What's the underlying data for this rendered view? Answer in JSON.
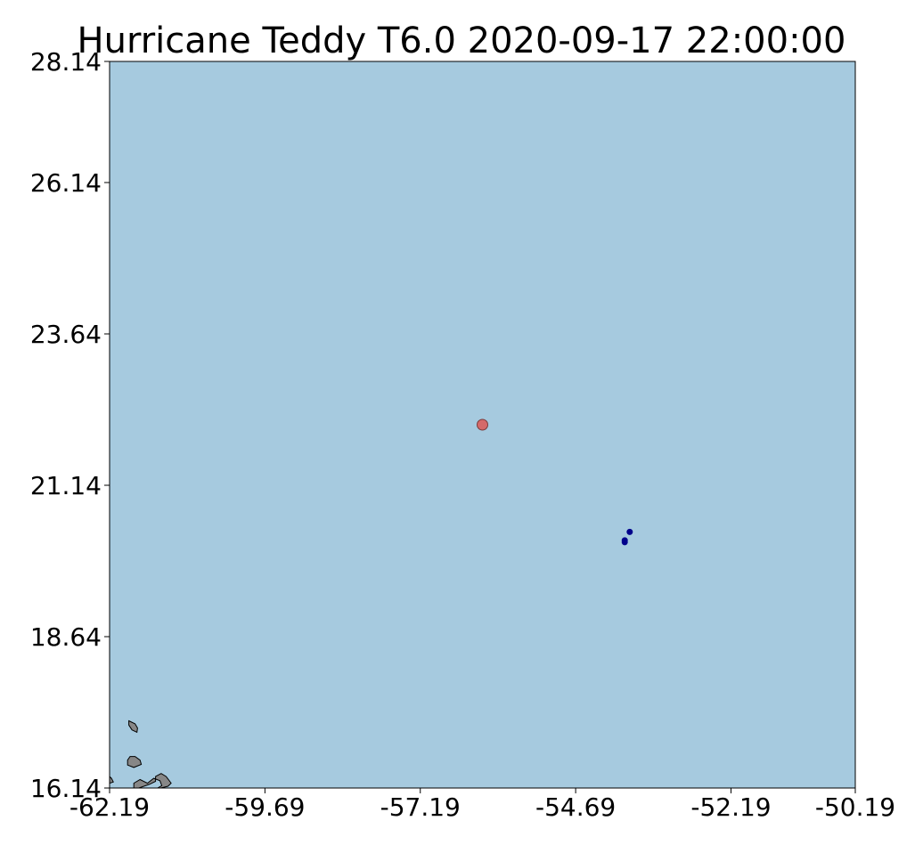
{
  "title": "Hurricane Teddy T6.0 2020-09-17 22:00:00",
  "map": {
    "extent": {
      "lon_min": -62.19,
      "lon_max": -50.19,
      "lat_min": 16.14,
      "lat_max": 28.14
    },
    "x_ticks": [
      "-62.19",
      "-59.69",
      "-57.19",
      "-54.69",
      "-52.19",
      "-50.19"
    ],
    "x_tick_values": [
      -62.19,
      -59.69,
      -57.19,
      -54.69,
      -52.19,
      -50.19
    ],
    "y_ticks": [
      "16.14",
      "18.64",
      "21.14",
      "23.64",
      "26.14",
      "28.14"
    ],
    "y_tick_values": [
      16.14,
      18.64,
      21.14,
      23.64,
      26.14,
      28.14
    ],
    "ocean_color": "#a6cadf",
    "land_color": "#878787",
    "hurricane_center": {
      "lon": -56.19,
      "lat": 22.14,
      "color": "#d46a6a"
    },
    "observations": {
      "color": "#00008b",
      "points": [
        {
          "lon": -53.82,
          "lat": 20.37
        },
        {
          "lon": -53.9,
          "lat": 20.23
        },
        {
          "lon": -53.9,
          "lat": 20.2
        }
      ]
    },
    "islands": [
      {
        "name": "island-1",
        "coords": [
          [
            -61.88,
            17.25
          ],
          [
            -61.78,
            17.2
          ],
          [
            -61.74,
            17.13
          ],
          [
            -61.75,
            17.06
          ],
          [
            -61.83,
            17.1
          ],
          [
            -61.88,
            17.18
          ]
        ]
      },
      {
        "name": "island-2",
        "coords": [
          [
            -61.9,
            16.6
          ],
          [
            -61.86,
            16.66
          ],
          [
            -61.78,
            16.66
          ],
          [
            -61.7,
            16.6
          ],
          [
            -61.68,
            16.53
          ],
          [
            -61.8,
            16.48
          ],
          [
            -61.9,
            16.52
          ]
        ]
      },
      {
        "name": "island-3",
        "coords": [
          [
            -62.19,
            16.33
          ],
          [
            -62.16,
            16.3
          ],
          [
            -62.13,
            16.24
          ],
          [
            -62.19,
            16.22
          ]
        ]
      },
      {
        "name": "island-4",
        "coords": [
          [
            -61.8,
            16.14
          ],
          [
            -61.8,
            16.22
          ],
          [
            -61.7,
            16.28
          ],
          [
            -61.58,
            16.22
          ],
          [
            -61.48,
            16.3
          ],
          [
            -61.38,
            16.26
          ],
          [
            -61.35,
            16.18
          ],
          [
            -61.45,
            16.12
          ],
          [
            -61.25,
            16.17
          ],
          [
            -61.2,
            16.22
          ],
          [
            -61.28,
            16.33
          ],
          [
            -61.36,
            16.38
          ],
          [
            -61.45,
            16.33
          ],
          [
            -61.45,
            16.25
          ],
          [
            -61.55,
            16.2
          ],
          [
            -61.72,
            16.14
          ]
        ]
      }
    ]
  }
}
